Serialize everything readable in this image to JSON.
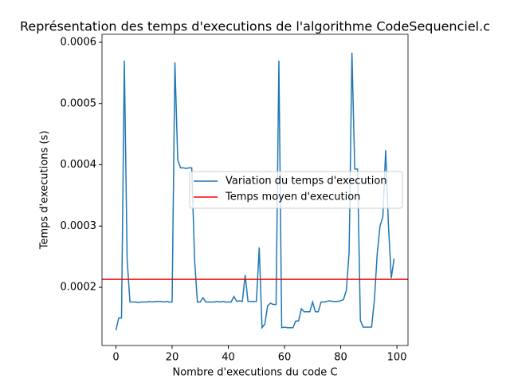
{
  "chart_data": {
    "type": "line",
    "title": "Représentation des temps d'executions de l'algorithme CodeSequenciel.c",
    "x_label": "Nombre d'executions du code C",
    "y_label": "Temps d'executions (s)",
    "x": [
      0,
      1,
      2,
      3,
      4,
      5,
      6,
      7,
      8,
      9,
      10,
      11,
      12,
      13,
      14,
      15,
      16,
      17,
      18,
      19,
      20,
      21,
      22,
      23,
      24,
      25,
      26,
      27,
      28,
      29,
      30,
      31,
      32,
      33,
      34,
      35,
      36,
      37,
      38,
      39,
      40,
      41,
      42,
      43,
      44,
      45,
      46,
      47,
      48,
      49,
      50,
      51,
      52,
      53,
      54,
      55,
      56,
      57,
      58,
      59,
      60,
      61,
      62,
      63,
      64,
      65,
      66,
      67,
      68,
      69,
      70,
      71,
      72,
      73,
      74,
      75,
      76,
      77,
      78,
      79,
      80,
      81,
      82,
      83,
      84,
      85,
      86,
      87,
      88,
      89,
      90,
      91,
      92,
      93,
      94,
      95,
      96,
      97,
      98,
      99
    ],
    "series": [
      {
        "name": "Variation du temps d'execution",
        "color": "#1f77b4",
        "values": [
          0.00013,
          0.00015,
          0.00015,
          0.00057,
          0.000245,
          0.000176,
          0.000176,
          0.000176,
          0.000175,
          0.000176,
          0.000176,
          0.000176,
          0.000177,
          0.000176,
          0.000177,
          0.000177,
          0.000177,
          0.000176,
          0.000177,
          0.000176,
          0.000176,
          0.000567,
          0.000408,
          0.000395,
          0.000395,
          0.000394,
          0.000395,
          0.000395,
          0.000245,
          0.000176,
          0.000176,
          0.000183,
          0.000176,
          0.000176,
          0.000176,
          0.000176,
          0.000177,
          0.000176,
          0.000177,
          0.000176,
          0.000176,
          0.000176,
          0.000185,
          0.000177,
          0.000178,
          0.000177,
          0.00022,
          0.000177,
          0.000177,
          0.000177,
          0.000177,
          0.000265,
          0.000134,
          0.00014,
          0.00017,
          0.000174,
          0.000172,
          0.000172,
          0.00057,
          0.000134,
          0.000135,
          0.000134,
          0.000134,
          0.000134,
          0.000145,
          0.000145,
          0.000165,
          0.00016,
          0.00016,
          0.00016,
          0.000176,
          0.00016,
          0.00016,
          0.000176,
          0.000176,
          0.000177,
          0.000178,
          0.000177,
          0.000177,
          0.000177,
          0.000178,
          0.00018,
          0.000195,
          0.000257,
          0.000583,
          0.000393,
          0.000393,
          0.000146,
          0.000135,
          0.000135,
          0.000135,
          0.000135,
          0.00018,
          0.000255,
          0.0003,
          0.000315,
          0.000424,
          0.0003,
          0.000215,
          0.000247
        ]
      }
    ],
    "mean": {
      "name": "Temps moyen d'execution",
      "color": "#ff0000",
      "value": 0.000213
    },
    "xlim": [
      -4.95,
      103.95
    ],
    "xticks": [
      0,
      20,
      40,
      60,
      80,
      100
    ],
    "ylim": [
      0.000105,
      0.000613
    ],
    "yticks": [
      0.0002,
      0.0003,
      0.0004,
      0.0005,
      0.0006
    ],
    "legend_position": "center right"
  }
}
